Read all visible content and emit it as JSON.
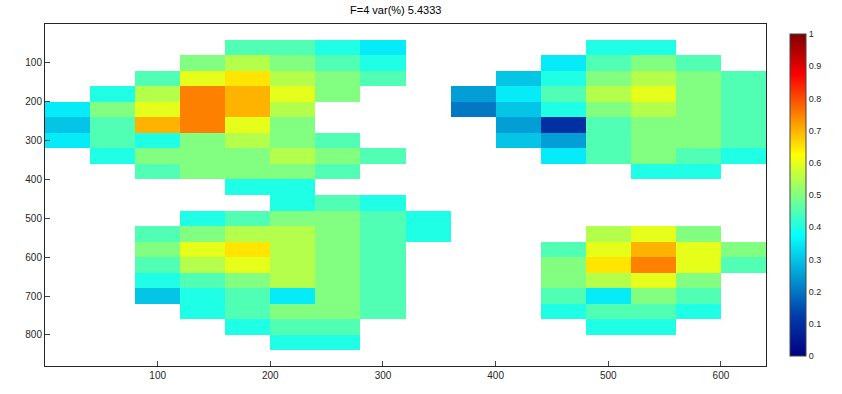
{
  "chart_data": {
    "type": "heatmap",
    "title": "F=4 var(%) 5.4333",
    "x": [
      20,
      60,
      100,
      140,
      180,
      220,
      260,
      300,
      340,
      380,
      420,
      460,
      500,
      540,
      580,
      620
    ],
    "y": [
      20,
      60,
      100,
      140,
      180,
      220,
      260,
      300,
      340,
      380,
      420,
      460,
      500,
      540,
      580,
      620,
      660,
      700,
      740,
      780,
      820,
      860
    ],
    "cells": [
      [
        null,
        null,
        null,
        null,
        null,
        null,
        null,
        null,
        null,
        null,
        null,
        null,
        null,
        null,
        null,
        null
      ],
      [
        null,
        null,
        null,
        null,
        0.45,
        0.45,
        0.4,
        0.35,
        null,
        null,
        null,
        null,
        0.4,
        0.4,
        null,
        null
      ],
      [
        null,
        null,
        null,
        0.5,
        0.55,
        0.5,
        0.45,
        0.4,
        null,
        null,
        null,
        0.35,
        0.45,
        0.5,
        0.45,
        null
      ],
      [
        null,
        null,
        0.45,
        0.6,
        0.65,
        0.55,
        0.5,
        0.45,
        null,
        null,
        0.3,
        0.4,
        0.5,
        0.55,
        0.5,
        0.45
      ],
      [
        null,
        0.4,
        0.55,
        0.75,
        0.7,
        0.6,
        0.5,
        null,
        null,
        0.25,
        0.35,
        0.45,
        0.55,
        0.6,
        0.5,
        0.45
      ],
      [
        0.35,
        0.5,
        0.6,
        0.75,
        0.7,
        0.55,
        null,
        null,
        null,
        0.2,
        0.3,
        0.4,
        0.5,
        0.55,
        0.5,
        0.45
      ],
      [
        0.3,
        0.45,
        0.7,
        0.75,
        0.6,
        0.5,
        null,
        null,
        null,
        null,
        0.25,
        0.1,
        0.45,
        0.5,
        0.5,
        0.45
      ],
      [
        0.35,
        0.45,
        0.4,
        0.5,
        0.55,
        0.5,
        0.45,
        null,
        null,
        null,
        0.3,
        0.25,
        0.45,
        0.5,
        0.5,
        0.45
      ],
      [
        null,
        0.4,
        0.5,
        0.5,
        0.5,
        0.55,
        0.5,
        0.45,
        null,
        null,
        null,
        0.35,
        0.45,
        0.5,
        0.45,
        0.4
      ],
      [
        null,
        null,
        0.45,
        0.5,
        0.5,
        0.5,
        0.45,
        null,
        null,
        null,
        null,
        null,
        null,
        0.4,
        0.4,
        null
      ],
      [
        null,
        null,
        null,
        null,
        0.4,
        0.4,
        null,
        null,
        null,
        null,
        null,
        null,
        null,
        null,
        null,
        null
      ],
      [
        null,
        null,
        null,
        null,
        null,
        0.4,
        0.45,
        0.4,
        null,
        null,
        null,
        null,
        null,
        null,
        null,
        null
      ],
      [
        null,
        null,
        null,
        0.4,
        0.45,
        0.5,
        0.5,
        0.45,
        0.4,
        null,
        null,
        null,
        null,
        null,
        null,
        null
      ],
      [
        null,
        null,
        0.45,
        0.5,
        0.55,
        0.55,
        0.5,
        0.45,
        0.4,
        null,
        null,
        null,
        0.55,
        0.6,
        0.5,
        null
      ],
      [
        null,
        null,
        0.5,
        0.6,
        0.65,
        0.55,
        0.5,
        0.45,
        null,
        null,
        null,
        0.45,
        0.6,
        0.7,
        0.6,
        0.5
      ],
      [
        null,
        null,
        0.45,
        0.55,
        0.6,
        0.55,
        0.5,
        0.45,
        null,
        null,
        null,
        0.5,
        0.65,
        0.75,
        0.6,
        0.45
      ],
      [
        null,
        null,
        0.4,
        0.45,
        0.5,
        0.55,
        0.5,
        0.45,
        null,
        null,
        null,
        0.5,
        0.55,
        0.6,
        0.5,
        null
      ],
      [
        null,
        null,
        0.3,
        0.4,
        0.45,
        0.35,
        0.5,
        0.45,
        null,
        null,
        null,
        0.45,
        0.35,
        0.5,
        0.45,
        null
      ],
      [
        null,
        null,
        null,
        0.4,
        0.45,
        0.5,
        0.5,
        0.45,
        null,
        null,
        null,
        0.4,
        0.45,
        0.45,
        0.4,
        null
      ],
      [
        null,
        null,
        null,
        null,
        0.4,
        0.45,
        0.45,
        null,
        null,
        null,
        null,
        null,
        0.4,
        0.4,
        null,
        null
      ],
      [
        null,
        null,
        null,
        null,
        null,
        0.4,
        0.4,
        null,
        null,
        null,
        null,
        null,
        null,
        null,
        null,
        null
      ],
      [
        null,
        null,
        null,
        null,
        null,
        null,
        null,
        null,
        null,
        null,
        null,
        null,
        null,
        null,
        null,
        null
      ]
    ],
    "xlim": [
      0,
      640
    ],
    "xticks": [
      100,
      200,
      300,
      400,
      500,
      600
    ],
    "ylim": [
      880,
      0
    ],
    "yticks": [
      100,
      200,
      300,
      400,
      500,
      600,
      700,
      800
    ],
    "colorbar": {
      "range": [
        0,
        1
      ],
      "ticks": [
        0,
        0.1,
        0.2,
        0.3,
        0.4,
        0.5,
        0.6,
        0.7,
        0.8,
        0.9,
        1
      ]
    },
    "grid": false
  }
}
